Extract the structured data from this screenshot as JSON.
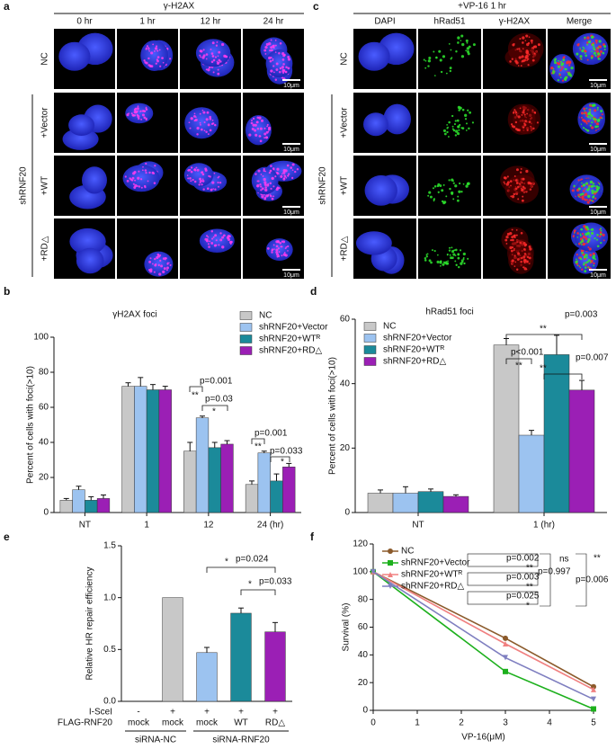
{
  "panel_a": {
    "label": "a",
    "title": "γ-H2AX",
    "columns": [
      "0 hr",
      "1 hr",
      "12 hr",
      "24 hr"
    ],
    "rows": [
      "NC",
      "+Vector",
      "+WT",
      "+RD△"
    ],
    "group": "shRNF20",
    "scale": "10μm"
  },
  "panel_c": {
    "label": "c",
    "title": "+VP-16 1 hr",
    "columns": [
      "DAPI",
      "hRad51",
      "γ-H2AX",
      "Merge"
    ],
    "rows": [
      "NC",
      "+Vector",
      "+WT",
      "+RD△"
    ],
    "group": "shRNF20",
    "scale": "10μm"
  },
  "chart_data": [
    {
      "type": "bar",
      "label": "b",
      "title": "γH2AX foci",
      "ylabel": "Percent of cells with foci(>10)",
      "categories": [
        "NT",
        "1",
        "12",
        "24 (hr)"
      ],
      "series": [
        {
          "name": "NC",
          "color": "#c8c8c8",
          "values": [
            7,
            72,
            35,
            16
          ],
          "errors": [
            1,
            2,
            5,
            2
          ]
        },
        {
          "name": "shRNF20+Vector",
          "color": "#9cc3f0",
          "values": [
            13,
            72,
            54,
            34
          ],
          "errors": [
            2,
            5,
            1,
            1
          ]
        },
        {
          "name": "shRNF20+WTᴿ",
          "color": "#1b8a9a",
          "values": [
            7,
            70,
            37,
            18
          ],
          "errors": [
            2,
            3,
            3,
            4
          ]
        },
        {
          "name": "shRNF20+RD△",
          "color": "#9b1fb5",
          "values": [
            8,
            70,
            39,
            26
          ],
          "errors": [
            2,
            2,
            2,
            2
          ]
        }
      ],
      "ylim": [
        0,
        100
      ],
      "yticks": [
        0,
        20,
        40,
        60,
        80,
        100
      ],
      "legend": "upper right",
      "annotations": [
        "p=0.001",
        "**",
        "p=0.03",
        "*",
        "p=0.001",
        "**",
        "p=0.033",
        "*"
      ]
    },
    {
      "type": "bar",
      "label": "d",
      "title": "hRad51 foci",
      "ylabel": "Percent of cells with foci(>10)",
      "categories": [
        "NT",
        "1 (hr)"
      ],
      "series": [
        {
          "name": "NC",
          "color": "#c8c8c8",
          "values": [
            6,
            52
          ],
          "errors": [
            1,
            2
          ]
        },
        {
          "name": "shRNF20+Vector",
          "color": "#9cc3f0",
          "values": [
            6,
            24
          ],
          "errors": [
            2,
            1.5
          ]
        },
        {
          "name": "shRNF20+WTᴿ",
          "color": "#1b8a9a",
          "values": [
            6.5,
            49
          ],
          "errors": [
            0.8,
            6
          ]
        },
        {
          "name": "shRNF20+RD△",
          "color": "#9b1fb5",
          "values": [
            5,
            38
          ],
          "errors": [
            0.5,
            3
          ]
        }
      ],
      "ylim": [
        0,
        60
      ],
      "yticks": [
        0,
        20,
        40,
        60
      ],
      "legend": "upper left",
      "annotations": [
        "p<0.001",
        "**",
        "p=0.007",
        "**",
        "p=0.003",
        "**"
      ]
    },
    {
      "type": "bar",
      "label": "e",
      "ylabel": "Relative HR repair efficiency",
      "categories": [
        "mock",
        "mock",
        "mock",
        "WT",
        "RD△"
      ],
      "category_label": "FLAG-RNF20",
      "isce": [
        "-",
        "+",
        "+",
        "+",
        "+"
      ],
      "isce_label": "I-SceI",
      "groups": [
        "siRNA-NC",
        "siRNA-RNF20"
      ],
      "values": [
        0,
        1.0,
        0.47,
        0.85,
        0.67
      ],
      "errors": [
        0,
        0,
        0.05,
        0.05,
        0.09
      ],
      "colors": [
        "#ffffff",
        "#c8c8c8",
        "#9cc3f0",
        "#1b8a9a",
        "#9b1fb5"
      ],
      "ylim": [
        0,
        1.5
      ],
      "yticks": [
        {
          "value": 0,
          "label": "0.0"
        },
        {
          "value": 0.5,
          "label": "0.5"
        },
        {
          "value": 1,
          "label": "1.0"
        },
        {
          "value": 1.5,
          "label": "1.5"
        }
      ],
      "annotations": [
        "*",
        "p=0.024",
        "*",
        "p=0.033"
      ]
    },
    {
      "type": "line",
      "label": "f",
      "xlabel": "VP-16(μM)",
      "ylabel": "Survival (%)",
      "x": [
        0,
        3,
        5
      ],
      "series": [
        {
          "name": "NC",
          "color": "#8b5a2b",
          "marker": "circle",
          "values": [
            100,
            52,
            17
          ]
        },
        {
          "name": "shRNF20+Vector",
          "color": "#1db01d",
          "marker": "square",
          "values": [
            100,
            28,
            1
          ]
        },
        {
          "name": "shRNF20+WTᴿ",
          "color": "#f08080",
          "marker": "triangle",
          "values": [
            100,
            48,
            15
          ]
        },
        {
          "name": "shRNF20+RD△",
          "color": "#7f7fc0",
          "marker": "triangle-down",
          "values": [
            100,
            38,
            8
          ]
        }
      ],
      "xlim": [
        0,
        5
      ],
      "xticks": [
        0,
        1,
        2,
        3,
        4,
        5
      ],
      "ylim": [
        0,
        120
      ],
      "yticks": [
        0,
        20,
        40,
        60,
        80,
        100,
        120
      ],
      "legend": "upper left",
      "annotations": [
        "p=0.002",
        "**",
        "p=0.003",
        "**",
        "p=0.025",
        "*",
        "ns",
        "p=0.997",
        "**",
        "p=0.006"
      ]
    }
  ]
}
